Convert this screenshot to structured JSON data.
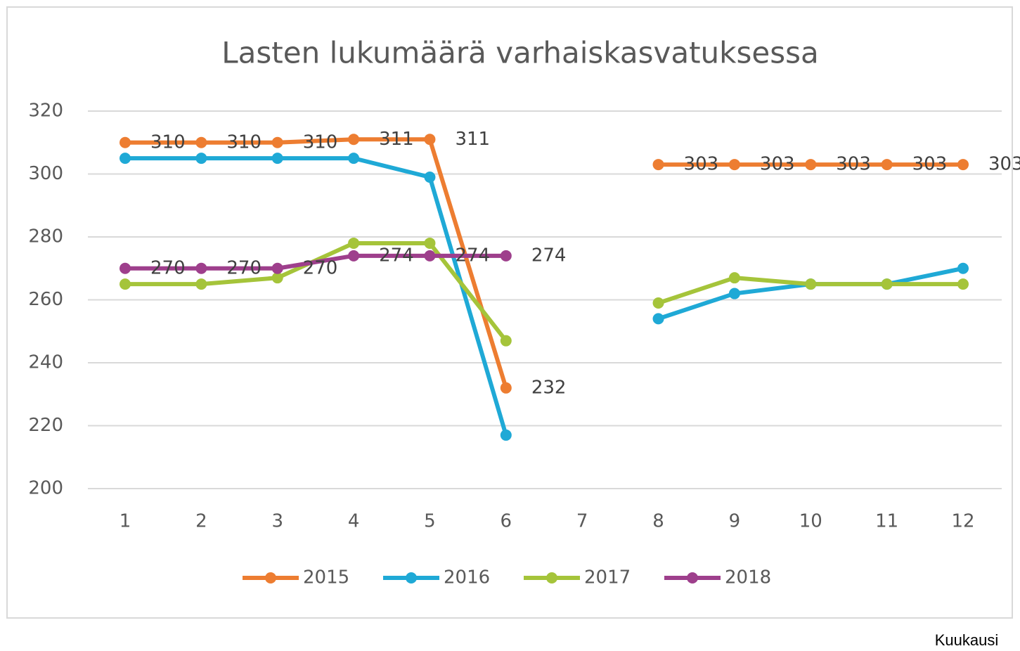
{
  "chart_data": {
    "type": "line",
    "title": "Lasten lukumäärä varhaiskasvatuksessa",
    "xlabel": "Kuukausi",
    "categories": [
      "1",
      "2",
      "3",
      "4",
      "5",
      "6",
      "7",
      "8",
      "9",
      "10",
      "11",
      "12"
    ],
    "series": [
      {
        "name": "2015",
        "color": "#ed7d31",
        "data_labels": true,
        "values": [
          310,
          310,
          310,
          311,
          311,
          232,
          null,
          303,
          303,
          303,
          303,
          303
        ]
      },
      {
        "name": "2016",
        "color": "#1fa9d6",
        "data_labels": false,
        "values": [
          305,
          305,
          305,
          305,
          299,
          217,
          null,
          254,
          262,
          265,
          265,
          270
        ]
      },
      {
        "name": "2017",
        "color": "#a5c43a",
        "data_labels": false,
        "values": [
          265,
          265,
          267,
          278,
          278,
          247,
          null,
          259,
          267,
          265,
          265,
          265
        ]
      },
      {
        "name": "2018",
        "color": "#9e3f8c",
        "data_labels": true,
        "values": [
          270,
          270,
          270,
          274,
          274,
          274,
          null,
          null,
          null,
          null,
          null,
          null
        ]
      }
    ],
    "ylim": [
      200,
      320
    ],
    "yticks": [
      200,
      220,
      240,
      260,
      280,
      300,
      320
    ],
    "grid": true,
    "legend": "bottom"
  }
}
